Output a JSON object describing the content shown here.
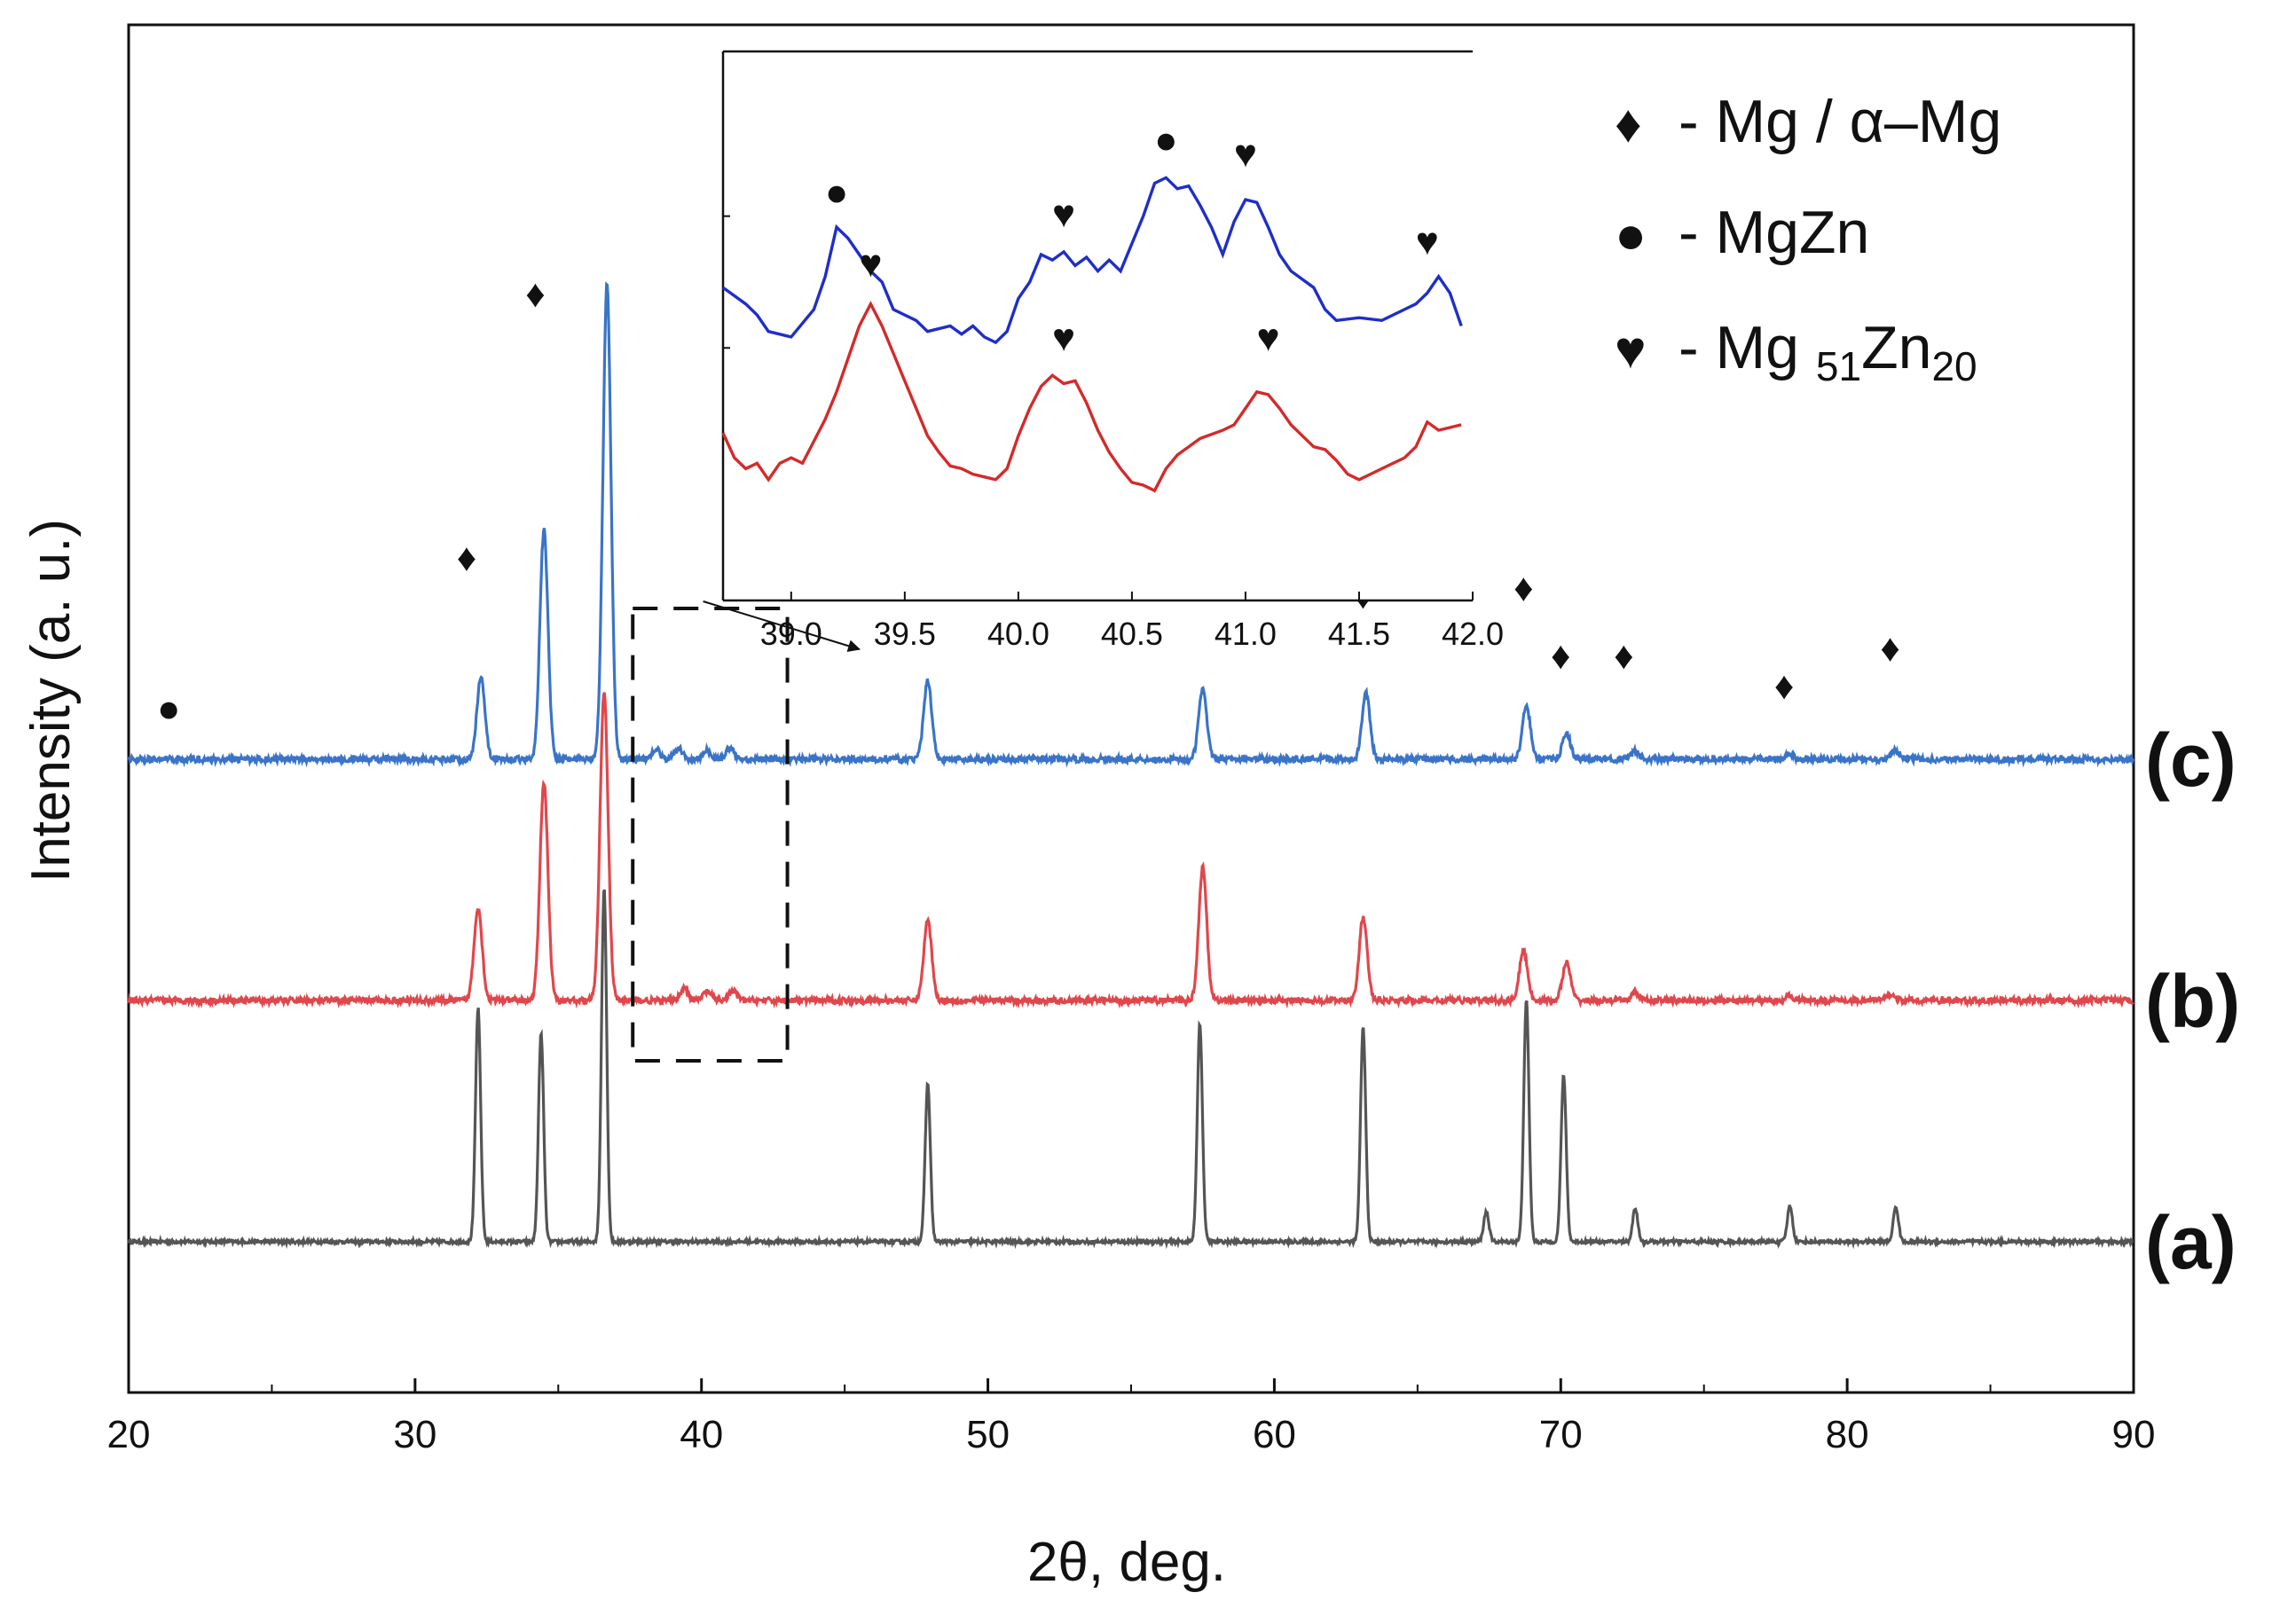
{
  "chart_data": {
    "type": "line",
    "title": "",
    "xlabel": "2θ, deg.",
    "ylabel": "Intensity (a. u.)",
    "xlim": [
      20,
      90
    ],
    "xticks": [
      20,
      30,
      40,
      50,
      60,
      70,
      80,
      90
    ],
    "grid": false,
    "series": [
      {
        "name": "(a)",
        "label": "(a)",
        "color": "#555555",
        "baseline": 0,
        "noise": 0.012,
        "peak_width": 0.09,
        "peaks": [
          [
            32.2,
            1.55
          ],
          [
            34.4,
            1.38
          ],
          [
            36.6,
            2.35
          ],
          [
            47.9,
            1.05
          ],
          [
            57.4,
            1.45
          ],
          [
            63.1,
            1.42
          ],
          [
            67.4,
            0.2
          ],
          [
            68.8,
            1.6
          ],
          [
            70.1,
            1.1
          ],
          [
            72.6,
            0.22
          ],
          [
            78.0,
            0.24
          ],
          [
            81.7,
            0.23
          ]
        ]
      },
      {
        "name": "(b)",
        "label": "(b)",
        "color": "#e0474c",
        "baseline": 1.6,
        "noise": 0.02,
        "peak_width": 0.14,
        "peaks": [
          [
            32.2,
            0.62
          ],
          [
            34.5,
            1.45
          ],
          [
            36.6,
            2.05
          ],
          [
            39.4,
            0.08
          ],
          [
            40.2,
            0.06
          ],
          [
            41.1,
            0.06
          ],
          [
            47.9,
            0.53
          ],
          [
            57.5,
            0.88
          ],
          [
            63.1,
            0.55
          ],
          [
            68.7,
            0.33
          ],
          [
            70.2,
            0.25
          ],
          [
            72.6,
            0.05
          ],
          [
            78.0,
            0.03
          ],
          [
            81.5,
            0.04
          ]
        ]
      },
      {
        "name": "(c)",
        "label": "(c)",
        "color": "#3a74c8",
        "baseline": 3.2,
        "noise": 0.02,
        "peak_width": 0.14,
        "peaks": [
          [
            32.3,
            0.55
          ],
          [
            34.5,
            1.52
          ],
          [
            36.7,
            3.16
          ],
          [
            38.4,
            0.07
          ],
          [
            39.2,
            0.07
          ],
          [
            40.2,
            0.06
          ],
          [
            41.0,
            0.07
          ],
          [
            47.9,
            0.52
          ],
          [
            57.5,
            0.47
          ],
          [
            63.2,
            0.44
          ],
          [
            68.8,
            0.35
          ],
          [
            70.2,
            0.17
          ],
          [
            72.6,
            0.05
          ],
          [
            78.0,
            0.03
          ],
          [
            81.7,
            0.06
          ]
        ]
      }
    ],
    "phase_markers": [
      {
        "symbol": "●",
        "x": 21.4,
        "y": 3.45
      },
      {
        "symbol": "♦",
        "x": 31.8,
        "y": 4.45
      },
      {
        "symbol": "♦",
        "x": 34.2,
        "y": 6.2
      },
      {
        "symbol": "♦",
        "x": 36.5,
        "y": 8.5
      },
      {
        "symbol": "♦",
        "x": 47.6,
        "y": 4.45
      },
      {
        "symbol": "♦",
        "x": 57.5,
        "y": 4.38
      },
      {
        "symbol": "♦",
        "x": 63.1,
        "y": 4.2
      },
      {
        "symbol": "♦",
        "x": 68.7,
        "y": 4.25
      },
      {
        "symbol": "♦",
        "x": 70.0,
        "y": 3.8
      },
      {
        "symbol": "♦",
        "x": 72.2,
        "y": 3.8
      },
      {
        "symbol": "♦",
        "x": 77.8,
        "y": 3.6
      },
      {
        "symbol": "♦",
        "x": 81.5,
        "y": 3.85
      }
    ],
    "zoom_region": {
      "x_range": [
        37.6,
        43.0
      ],
      "y_range": [
        1.2,
        4.2
      ]
    },
    "inset": {
      "type": "line",
      "xlim": [
        38.7,
        42.0
      ],
      "xticks": [
        39.0,
        39.5,
        40.0,
        40.5,
        41.0,
        41.5,
        42.0
      ],
      "ylim": [
        0,
        10
      ],
      "series": [
        {
          "name": "(c) zoom",
          "color": "#1f2ec8",
          "points": [
            [
              38.7,
              5.7
            ],
            [
              38.8,
              5.4
            ],
            [
              38.85,
              5.2
            ],
            [
              38.9,
              4.9
            ],
            [
              39.0,
              4.8
            ],
            [
              39.1,
              5.3
            ],
            [
              39.15,
              5.9
            ],
            [
              39.2,
              6.8
            ],
            [
              39.25,
              6.6
            ],
            [
              39.3,
              6.3
            ],
            [
              39.35,
              6.0
            ],
            [
              39.4,
              5.8
            ],
            [
              39.45,
              5.3
            ],
            [
              39.5,
              5.2
            ],
            [
              39.55,
              5.1
            ],
            [
              39.6,
              4.9
            ],
            [
              39.7,
              5.0
            ],
            [
              39.75,
              4.85
            ],
            [
              39.8,
              5.0
            ],
            [
              39.85,
              4.8
            ],
            [
              39.9,
              4.7
            ],
            [
              39.95,
              4.9
            ],
            [
              40.0,
              5.5
            ],
            [
              40.05,
              5.8
            ],
            [
              40.1,
              6.3
            ],
            [
              40.15,
              6.2
            ],
            [
              40.2,
              6.35
            ],
            [
              40.25,
              6.1
            ],
            [
              40.3,
              6.25
            ],
            [
              40.35,
              6.0
            ],
            [
              40.4,
              6.2
            ],
            [
              40.45,
              6.0
            ],
            [
              40.5,
              6.5
            ],
            [
              40.55,
              7.0
            ],
            [
              40.6,
              7.6
            ],
            [
              40.65,
              7.7
            ],
            [
              40.7,
              7.5
            ],
            [
              40.75,
              7.55
            ],
            [
              40.8,
              7.2
            ],
            [
              40.85,
              6.8
            ],
            [
              40.9,
              6.3
            ],
            [
              40.95,
              6.9
            ],
            [
              41.0,
              7.3
            ],
            [
              41.05,
              7.25
            ],
            [
              41.1,
              6.8
            ],
            [
              41.15,
              6.3
            ],
            [
              41.2,
              6.0
            ],
            [
              41.3,
              5.7
            ],
            [
              41.35,
              5.3
            ],
            [
              41.4,
              5.1
            ],
            [
              41.5,
              5.15
            ],
            [
              41.6,
              5.1
            ],
            [
              41.7,
              5.3
            ],
            [
              41.75,
              5.4
            ],
            [
              41.8,
              5.6
            ],
            [
              41.85,
              5.9
            ],
            [
              41.9,
              5.6
            ],
            [
              41.95,
              5.0
            ]
          ]
        },
        {
          "name": "(b) zoom",
          "color": "#d42a2a",
          "points": [
            [
              38.7,
              3.05
            ],
            [
              38.75,
              2.6
            ],
            [
              38.8,
              2.4
            ],
            [
              38.85,
              2.5
            ],
            [
              38.9,
              2.2
            ],
            [
              38.95,
              2.5
            ],
            [
              39.0,
              2.6
            ],
            [
              39.05,
              2.5
            ],
            [
              39.1,
              2.9
            ],
            [
              39.15,
              3.3
            ],
            [
              39.2,
              3.8
            ],
            [
              39.25,
              4.4
            ],
            [
              39.3,
              5.0
            ],
            [
              39.35,
              5.4
            ],
            [
              39.4,
              5.0
            ],
            [
              39.45,
              4.5
            ],
            [
              39.5,
              4.0
            ],
            [
              39.55,
              3.5
            ],
            [
              39.6,
              3.0
            ],
            [
              39.65,
              2.7
            ],
            [
              39.7,
              2.45
            ],
            [
              39.75,
              2.4
            ],
            [
              39.8,
              2.3
            ],
            [
              39.85,
              2.25
            ],
            [
              39.9,
              2.2
            ],
            [
              39.95,
              2.4
            ],
            [
              40.0,
              3.0
            ],
            [
              40.05,
              3.5
            ],
            [
              40.1,
              3.9
            ],
            [
              40.15,
              4.1
            ],
            [
              40.2,
              3.95
            ],
            [
              40.25,
              4.0
            ],
            [
              40.3,
              3.6
            ],
            [
              40.35,
              3.1
            ],
            [
              40.4,
              2.7
            ],
            [
              40.45,
              2.4
            ],
            [
              40.5,
              2.15
            ],
            [
              40.55,
              2.1
            ],
            [
              40.6,
              2.0
            ],
            [
              40.65,
              2.4
            ],
            [
              40.7,
              2.65
            ],
            [
              40.75,
              2.8
            ],
            [
              40.8,
              2.95
            ],
            [
              40.9,
              3.1
            ],
            [
              40.95,
              3.2
            ],
            [
              41.0,
              3.5
            ],
            [
              41.05,
              3.8
            ],
            [
              41.1,
              3.75
            ],
            [
              41.15,
              3.5
            ],
            [
              41.2,
              3.2
            ],
            [
              41.25,
              3.0
            ],
            [
              41.3,
              2.8
            ],
            [
              41.35,
              2.75
            ],
            [
              41.4,
              2.55
            ],
            [
              41.45,
              2.3
            ],
            [
              41.5,
              2.2
            ],
            [
              41.55,
              2.3
            ],
            [
              41.6,
              2.4
            ],
            [
              41.7,
              2.6
            ],
            [
              41.75,
              2.8
            ],
            [
              41.8,
              3.25
            ],
            [
              41.85,
              3.1
            ],
            [
              41.9,
              3.15
            ],
            [
              41.95,
              3.2
            ]
          ]
        }
      ],
      "markers": [
        {
          "symbol": "●",
          "x": 39.2,
          "y": 7.2
        },
        {
          "symbol": "♥",
          "x": 40.2,
          "y": 6.8
        },
        {
          "symbol": "●",
          "x": 40.65,
          "y": 8.15
        },
        {
          "symbol": "♥",
          "x": 41.0,
          "y": 7.9
        },
        {
          "symbol": "♥",
          "x": 41.8,
          "y": 6.3
        },
        {
          "symbol": "♥",
          "x": 39.35,
          "y": 5.9
        },
        {
          "symbol": "♥",
          "x": 40.2,
          "y": 4.55
        },
        {
          "symbol": "♥",
          "x": 41.1,
          "y": 4.55
        }
      ]
    },
    "legend": {
      "position": "top-right",
      "entries": [
        {
          "symbol": "♦",
          "text": "- Mg / α–Mg"
        },
        {
          "symbol": "●",
          "text": "- MgZn"
        },
        {
          "symbol": "♥",
          "text": "- Mg",
          "sub1": "51",
          "text2": "Zn",
          "sub2": "20"
        }
      ]
    }
  }
}
